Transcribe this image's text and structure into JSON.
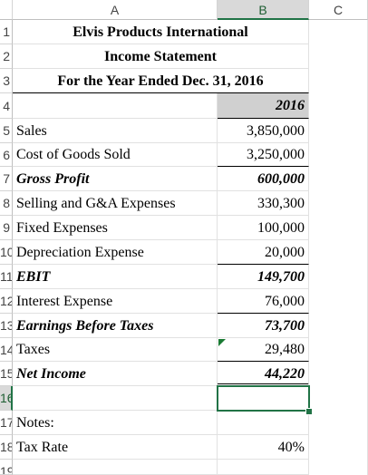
{
  "columns": [
    "A",
    "B",
    "C"
  ],
  "rows": [
    {
      "num": "1",
      "a": "Elvis Products International",
      "b": ""
    },
    {
      "num": "2",
      "a": "Income Statement",
      "b": ""
    },
    {
      "num": "3",
      "a": "For the Year Ended Dec. 31, 2016",
      "b": ""
    },
    {
      "num": "4",
      "a": "",
      "b": "2016"
    },
    {
      "num": "5",
      "a": "Sales",
      "b": "3,850,000"
    },
    {
      "num": "6",
      "a": "Cost of Goods Sold",
      "b": "3,250,000"
    },
    {
      "num": "7",
      "a": "Gross Profit",
      "b": "600,000"
    },
    {
      "num": "8",
      "a": "Selling and G&A Expenses",
      "b": "330,300"
    },
    {
      "num": "9",
      "a": "Fixed Expenses",
      "b": "100,000"
    },
    {
      "num": "10",
      "a": "Depreciation Expense",
      "b": "20,000"
    },
    {
      "num": "11",
      "a": "EBIT",
      "b": "149,700"
    },
    {
      "num": "12",
      "a": "Interest Expense",
      "b": "76,000"
    },
    {
      "num": "13",
      "a": "Earnings Before Taxes",
      "b": "73,700"
    },
    {
      "num": "14",
      "a": "Taxes",
      "b": "29,480"
    },
    {
      "num": "15",
      "a": "Net Income",
      "b": "44,220"
    },
    {
      "num": "16",
      "a": "",
      "b": ""
    },
    {
      "num": "17",
      "a": "Notes:",
      "b": ""
    },
    {
      "num": "18",
      "a": "Tax Rate",
      "b": "40%"
    },
    {
      "num": "19",
      "a": "",
      "b": ""
    }
  ],
  "colors": {
    "selection": "#217346",
    "header_gray": "#d0d0d0"
  }
}
